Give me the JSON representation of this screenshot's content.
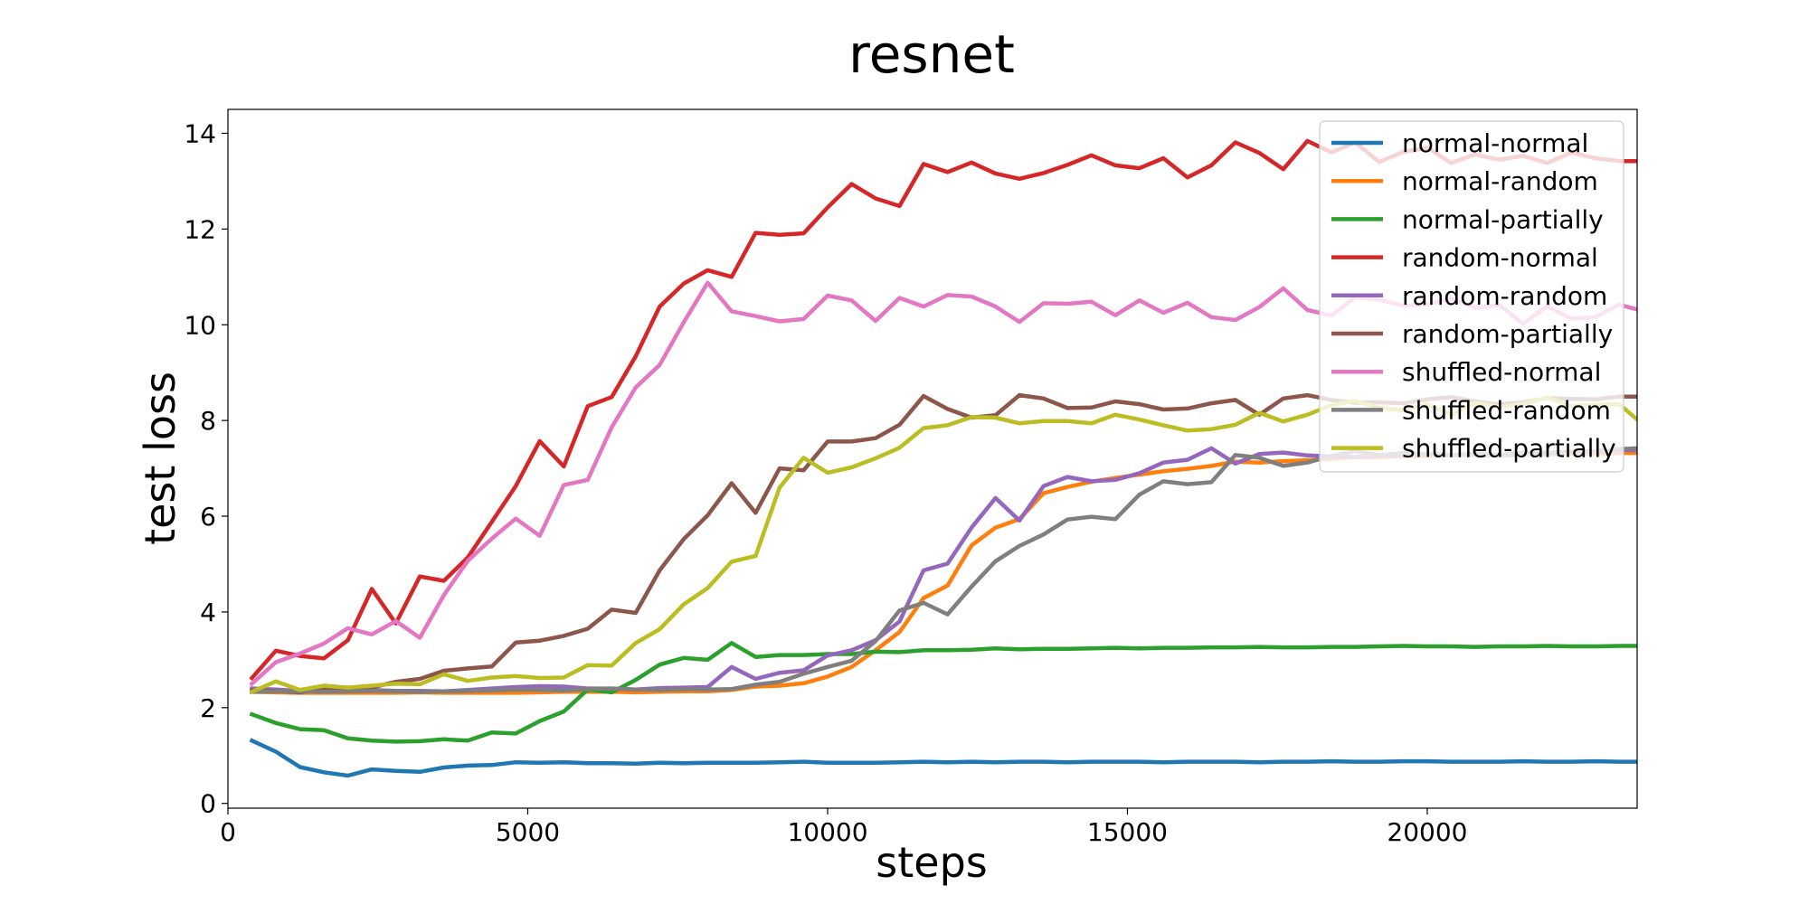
{
  "chart_data": {
    "type": "line",
    "title": "resnet",
    "xlabel": "steps",
    "ylabel": "test loss",
    "xlim": [
      0,
      23500
    ],
    "ylim": [
      -0.1,
      14.5
    ],
    "xticks": [
      0,
      5000,
      10000,
      15000,
      20000
    ],
    "xtick_labels": [
      "0",
      "5000",
      "10000",
      "15000",
      "20000"
    ],
    "yticks": [
      0,
      2,
      4,
      6,
      8,
      10,
      12,
      14
    ],
    "ytick_labels": [
      "0",
      "2",
      "4",
      "6",
      "8",
      "10",
      "12",
      "14"
    ],
    "grid": false,
    "legend_position": "top-right",
    "x": [
      400,
      800,
      1200,
      1600,
      2000,
      2400,
      2800,
      3200,
      3600,
      4000,
      4400,
      4800,
      5200,
      5600,
      6000,
      6400,
      6800,
      7200,
      7600,
      8000,
      8400,
      8800,
      9200,
      9600,
      10000,
      10400,
      10800,
      11200,
      11600,
      12000,
      12400,
      12800,
      13200,
      13600,
      14000,
      14400,
      14800,
      15200,
      15600,
      16000,
      16400,
      16800,
      17200,
      17600,
      18000,
      18400,
      18800,
      19200,
      19600,
      20000,
      20400,
      20800,
      21200,
      21600,
      22000,
      22400,
      22800,
      23200,
      23500
    ],
    "series": [
      {
        "name": "normal-normal",
        "color": "#1f77b4",
        "values": [
          1.31,
          1.08,
          0.76,
          0.65,
          0.58,
          0.71,
          0.68,
          0.66,
          0.75,
          0.79,
          0.8,
          0.86,
          0.85,
          0.86,
          0.84,
          0.84,
          0.83,
          0.85,
          0.84,
          0.85,
          0.85,
          0.85,
          0.86,
          0.87,
          0.85,
          0.85,
          0.85,
          0.86,
          0.87,
          0.86,
          0.87,
          0.86,
          0.87,
          0.87,
          0.86,
          0.87,
          0.87,
          0.87,
          0.86,
          0.87,
          0.87,
          0.87,
          0.86,
          0.87,
          0.87,
          0.88,
          0.87,
          0.87,
          0.88,
          0.88,
          0.87,
          0.87,
          0.87,
          0.88,
          0.87,
          0.87,
          0.88,
          0.87,
          0.87
        ]
      },
      {
        "name": "normal-random",
        "color": "#ff7f0e",
        "values": [
          2.33,
          2.32,
          2.31,
          2.31,
          2.31,
          2.31,
          2.31,
          2.32,
          2.31,
          2.31,
          2.31,
          2.31,
          2.32,
          2.33,
          2.33,
          2.33,
          2.32,
          2.33,
          2.34,
          2.34,
          2.37,
          2.44,
          2.46,
          2.51,
          2.65,
          2.85,
          3.2,
          3.58,
          4.29,
          4.55,
          5.39,
          5.76,
          5.94,
          6.48,
          6.61,
          6.72,
          6.8,
          6.87,
          6.94,
          6.99,
          7.05,
          7.14,
          7.12,
          7.15,
          7.17,
          7.2,
          7.23,
          7.23,
          7.25,
          7.26,
          7.27,
          7.28,
          7.26,
          7.28,
          7.29,
          7.31,
          7.3,
          7.32,
          7.32
        ]
      },
      {
        "name": "normal-partially",
        "color": "#2ca02c",
        "values": [
          1.86,
          1.68,
          1.55,
          1.53,
          1.36,
          1.31,
          1.29,
          1.3,
          1.34,
          1.31,
          1.48,
          1.46,
          1.72,
          1.92,
          2.38,
          2.32,
          2.58,
          2.9,
          3.04,
          3.0,
          3.35,
          3.06,
          3.1,
          3.1,
          3.12,
          3.12,
          3.17,
          3.16,
          3.2,
          3.2,
          3.21,
          3.24,
          3.22,
          3.23,
          3.23,
          3.24,
          3.25,
          3.24,
          3.25,
          3.25,
          3.26,
          3.26,
          3.27,
          3.26,
          3.26,
          3.27,
          3.27,
          3.28,
          3.29,
          3.28,
          3.28,
          3.27,
          3.28,
          3.28,
          3.29,
          3.28,
          3.28,
          3.29,
          3.29
        ]
      },
      {
        "name": "random-normal",
        "color": "#d62728",
        "values": [
          2.62,
          3.19,
          3.08,
          3.03,
          3.41,
          4.48,
          3.76,
          4.74,
          4.65,
          5.14,
          5.88,
          6.63,
          7.57,
          7.04,
          8.3,
          8.49,
          9.34,
          10.38,
          10.86,
          11.14,
          11.0,
          11.92,
          11.88,
          11.91,
          12.45,
          12.94,
          12.64,
          12.48,
          13.36,
          13.19,
          13.39,
          13.16,
          13.05,
          13.17,
          13.34,
          13.54,
          13.33,
          13.27,
          13.48,
          13.08,
          13.33,
          13.81,
          13.59,
          13.25,
          13.84,
          13.6,
          13.81,
          13.4,
          13.61,
          13.7,
          13.38,
          13.56,
          13.45,
          13.53,
          13.38,
          13.6,
          13.48,
          13.42,
          13.42
        ]
      },
      {
        "name": "random-random",
        "color": "#9467bd",
        "values": [
          2.4,
          2.38,
          2.35,
          2.37,
          2.36,
          2.37,
          2.35,
          2.35,
          2.34,
          2.37,
          2.4,
          2.43,
          2.45,
          2.44,
          2.4,
          2.4,
          2.38,
          2.41,
          2.42,
          2.43,
          2.85,
          2.6,
          2.73,
          2.78,
          3.09,
          3.2,
          3.41,
          3.8,
          4.87,
          5.01,
          5.76,
          6.38,
          5.91,
          6.63,
          6.82,
          6.73,
          6.76,
          6.9,
          7.12,
          7.18,
          7.42,
          7.1,
          7.3,
          7.33,
          7.27,
          7.25,
          7.24,
          7.27,
          7.26,
          7.31,
          7.28,
          7.3,
          7.27,
          7.31,
          7.33,
          7.35,
          7.34,
          7.38,
          7.38
        ]
      },
      {
        "name": "random-partially",
        "color": "#8c564b",
        "values": [
          2.36,
          2.35,
          2.32,
          2.4,
          2.36,
          2.42,
          2.54,
          2.6,
          2.77,
          2.82,
          2.86,
          3.36,
          3.4,
          3.5,
          3.65,
          4.05,
          3.98,
          4.87,
          5.52,
          6.02,
          6.69,
          6.07,
          7.0,
          6.96,
          7.56,
          7.56,
          7.63,
          7.91,
          8.51,
          8.24,
          8.06,
          8.11,
          8.53,
          8.46,
          8.26,
          8.27,
          8.4,
          8.34,
          8.23,
          8.25,
          8.36,
          8.43,
          8.12,
          8.46,
          8.53,
          8.43,
          8.37,
          8.38,
          8.36,
          8.44,
          8.49,
          8.4,
          8.34,
          8.38,
          8.47,
          8.45,
          8.44,
          8.5,
          8.5
        ]
      },
      {
        "name": "shuffled-normal",
        "color": "#e377c2",
        "values": [
          2.5,
          2.95,
          3.13,
          3.34,
          3.66,
          3.53,
          3.81,
          3.46,
          4.35,
          5.07,
          5.53,
          5.95,
          5.59,
          6.65,
          6.76,
          7.86,
          8.69,
          9.16,
          10.05,
          10.88,
          10.28,
          10.18,
          10.07,
          10.12,
          10.61,
          10.51,
          10.08,
          10.56,
          10.38,
          10.62,
          10.59,
          10.38,
          10.06,
          10.45,
          10.44,
          10.48,
          10.2,
          10.51,
          10.25,
          10.46,
          10.16,
          10.1,
          10.37,
          10.76,
          10.31,
          10.19,
          10.58,
          10.52,
          10.4,
          10.43,
          10.55,
          10.35,
          10.41,
          10.02,
          10.39,
          10.13,
          10.16,
          10.42,
          10.32
        ]
      },
      {
        "name": "shuffled-random",
        "color": "#7f7f7f",
        "values": [
          2.33,
          2.34,
          2.34,
          2.33,
          2.34,
          2.35,
          2.34,
          2.33,
          2.34,
          2.35,
          2.36,
          2.38,
          2.37,
          2.36,
          2.39,
          2.4,
          2.38,
          2.37,
          2.39,
          2.38,
          2.39,
          2.48,
          2.54,
          2.71,
          2.85,
          2.98,
          3.39,
          4.03,
          4.19,
          3.95,
          4.53,
          5.06,
          5.38,
          5.62,
          5.93,
          5.99,
          5.94,
          6.45,
          6.73,
          6.67,
          6.71,
          7.28,
          7.22,
          7.05,
          7.12,
          7.26,
          7.36,
          7.28,
          7.32,
          7.3,
          7.28,
          7.31,
          7.28,
          7.33,
          7.3,
          7.35,
          7.36,
          7.4,
          7.42
        ]
      },
      {
        "name": "shuffled-partially",
        "color": "#bcbd22",
        "values": [
          2.33,
          2.55,
          2.37,
          2.46,
          2.42,
          2.46,
          2.5,
          2.49,
          2.7,
          2.56,
          2.63,
          2.66,
          2.62,
          2.63,
          2.89,
          2.88,
          3.35,
          3.64,
          4.16,
          4.5,
          5.05,
          5.17,
          6.6,
          7.22,
          6.91,
          7.02,
          7.21,
          7.43,
          7.84,
          7.9,
          8.07,
          8.06,
          7.94,
          7.99,
          7.99,
          7.94,
          8.12,
          8.02,
          7.9,
          7.79,
          7.82,
          7.91,
          8.16,
          7.98,
          8.12,
          8.32,
          8.41,
          8.27,
          8.21,
          8.34,
          8.12,
          8.37,
          8.28,
          8.34,
          8.48,
          8.3,
          8.33,
          8.34,
          8.02
        ]
      }
    ]
  }
}
